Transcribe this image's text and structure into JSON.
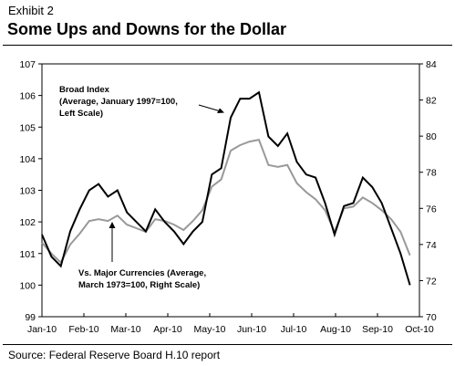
{
  "exhibit_label": "Exhibit 2",
  "title": "Some Ups and Downs for the Dollar",
  "source": "Source: Federal Reserve Board H.10 report",
  "chart_data": {
    "type": "line",
    "title": "Some Ups and Downs for the Dollar",
    "x_tick_labels": [
      "Jan-10",
      "Feb-10",
      "Mar-10",
      "Apr-10",
      "May-10",
      "Jun-10",
      "Jul-10",
      "Aug-10",
      "Sep-10",
      "Oct-10"
    ],
    "y_left": {
      "range": [
        99,
        107
      ],
      "ticks": [
        99,
        100,
        101,
        102,
        103,
        104,
        105,
        106,
        107
      ]
    },
    "y_right": {
      "range": [
        70,
        84
      ],
      "ticks": [
        70,
        72,
        74,
        76,
        78,
        80,
        82,
        84
      ]
    },
    "grid": false,
    "x_index_range": [
      0,
      40
    ],
    "series": [
      {
        "name": "Broad Index (Average, January 1997=100, Left Scale)",
        "axis": "left",
        "color": "#000000",
        "x": [
          0,
          1,
          2,
          3,
          4,
          5,
          6,
          7,
          8,
          9,
          10,
          11,
          12,
          13,
          14,
          15,
          16,
          17,
          18,
          19,
          20,
          21,
          22,
          23,
          24,
          25,
          26,
          27,
          28,
          29,
          30,
          31,
          32,
          33,
          34,
          35,
          36,
          37,
          38,
          39,
          40
        ],
        "values": [
          101.6,
          100.9,
          100.6,
          101.7,
          102.4,
          103.0,
          103.2,
          102.8,
          103.0,
          102.3,
          102.0,
          101.7,
          102.4,
          102.0,
          101.7,
          101.3,
          101.7,
          102.0,
          103.5,
          103.7,
          105.3,
          105.9,
          105.9,
          106.1,
          104.7,
          104.4,
          104.8,
          103.9,
          103.5,
          103.4,
          102.6,
          101.6,
          102.5,
          102.6,
          103.4,
          103.1,
          102.6,
          101.8,
          101.0,
          100.0,
          null
        ]
      },
      {
        "name": "Vs. Major Currencies (Average, March 1973=100, Right Scale)",
        "axis": "right",
        "color": "#999999",
        "x": [
          0,
          1,
          2,
          3,
          4,
          5,
          6,
          7,
          8,
          9,
          10,
          11,
          12,
          13,
          14,
          15,
          16,
          17,
          18,
          19,
          20,
          21,
          22,
          23,
          24,
          25,
          26,
          27,
          28,
          29,
          30,
          31,
          32,
          33,
          34,
          35,
          36,
          37,
          38,
          39,
          40
        ],
        "values": [
          74.1,
          73.5,
          73.0,
          74.0,
          74.6,
          75.3,
          75.4,
          75.3,
          75.6,
          75.1,
          74.9,
          74.7,
          75.4,
          75.3,
          75.1,
          74.8,
          75.3,
          75.9,
          77.2,
          77.6,
          79.2,
          79.5,
          79.7,
          79.8,
          78.4,
          78.3,
          78.4,
          77.4,
          76.9,
          76.5,
          75.9,
          74.7,
          76.0,
          76.1,
          76.6,
          76.3,
          75.9,
          75.4,
          74.7,
          73.4,
          null
        ]
      }
    ],
    "annotations": [
      {
        "lines": [
          "Broad Index",
          "(Average, January 1997=100,",
          "Left Scale)"
        ]
      },
      {
        "lines": [
          "Vs. Major Currencies (Average,",
          "March 1973=100, Right Scale)"
        ]
      }
    ]
  }
}
